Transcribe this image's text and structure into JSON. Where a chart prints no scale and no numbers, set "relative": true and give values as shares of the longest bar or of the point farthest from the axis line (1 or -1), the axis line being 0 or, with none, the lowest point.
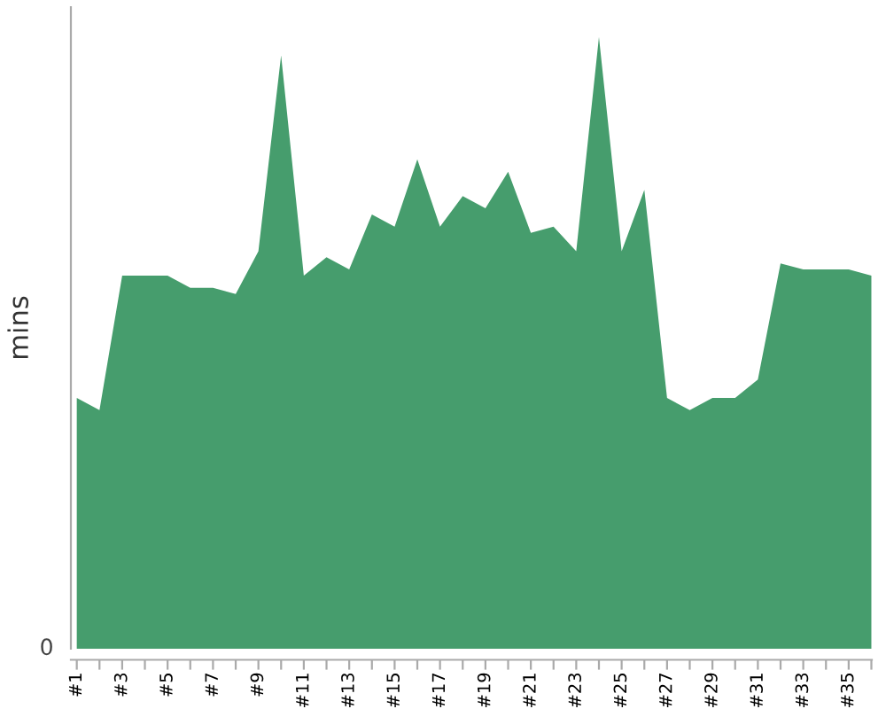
{
  "chart_data": {
    "type": "area",
    "ylabel": "mins",
    "relative": true,
    "color": "#469d6d",
    "annotations": [
      "0"
    ],
    "categories": [
      "#1",
      null,
      "#3",
      null,
      "#5",
      null,
      "#7",
      null,
      "#9",
      null,
      "#11",
      null,
      "#13",
      null,
      "#15",
      null,
      "#17",
      null,
      "#19",
      null,
      "#21",
      null,
      "#23",
      null,
      "#25",
      null,
      "#27",
      null,
      "#29",
      null,
      "#31",
      null,
      "#33",
      null,
      "#35",
      null
    ],
    "values": [
      0.41,
      0.39,
      0.61,
      0.61,
      0.61,
      0.59,
      0.59,
      0.58,
      0.65,
      0.97,
      0.61,
      0.64,
      0.62,
      0.71,
      0.69,
      0.8,
      0.69,
      0.74,
      0.72,
      0.78,
      0.68,
      0.69,
      0.65,
      1.0,
      0.65,
      0.75,
      0.41,
      0.39,
      0.41,
      0.41,
      0.44,
      0.63,
      0.62,
      0.62,
      0.62,
      0.61
    ]
  }
}
